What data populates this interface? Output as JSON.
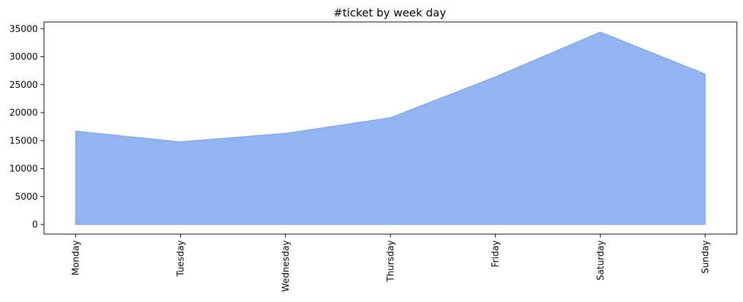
{
  "chart_data": {
    "type": "area",
    "title": "#ticket by week day",
    "xlabel": "",
    "ylabel": "",
    "categories": [
      "Monday",
      "Tuesday",
      "Wednesday",
      "Thursday",
      "Friday",
      "Saturday",
      "Sunday"
    ],
    "series": [
      {
        "values": [
          16700,
          14800,
          16300,
          19100,
          26400,
          34400,
          26900
        ],
        "color": "#6495ed",
        "opacity": 0.7
      }
    ],
    "ylim": [
      -1700,
      36200
    ],
    "yticks": [
      0,
      5000,
      10000,
      15000,
      20000,
      25000,
      30000,
      35000
    ],
    "ytick_labels": [
      "0",
      "5000",
      "10000",
      "15000",
      "20000",
      "25000",
      "30000",
      "35000"
    ],
    "grid": false,
    "legend": "none"
  }
}
